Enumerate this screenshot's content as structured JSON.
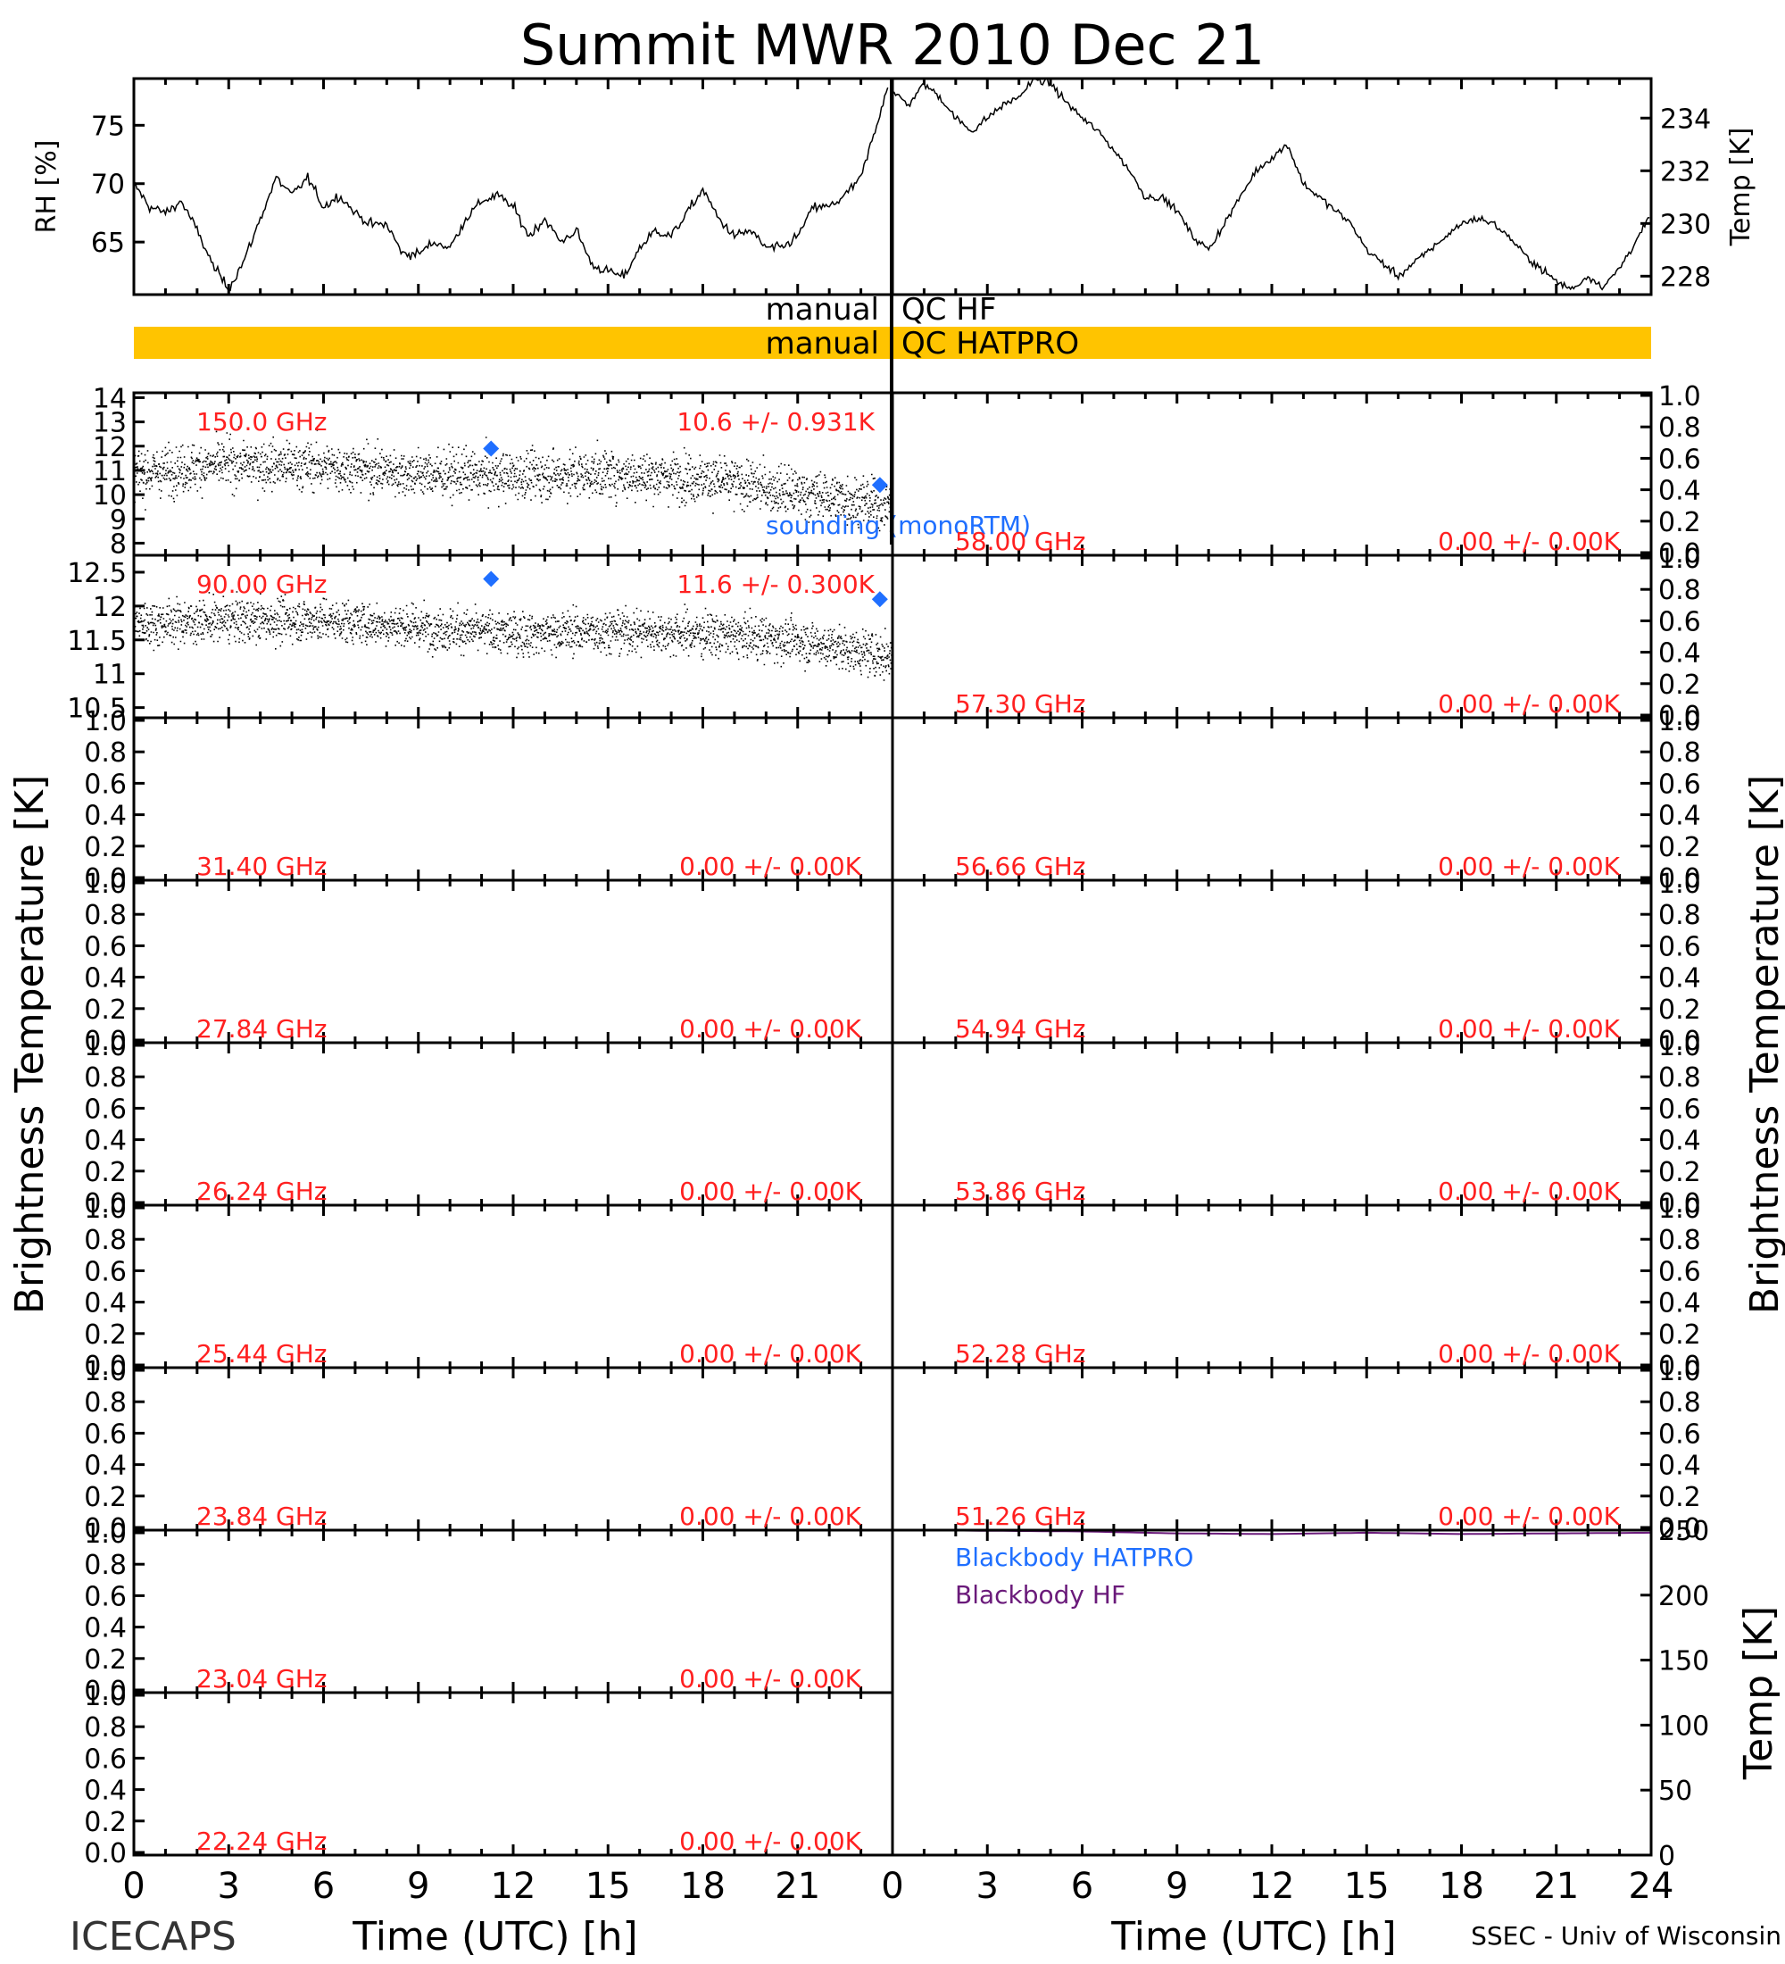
{
  "figure": {
    "title": "Summit MWR 2010 Dec 21",
    "footer_left": "ICECAPS",
    "footer_right": "SSEC - Univ of Wisconsin",
    "bt_ylabel": "Brightness Temperature [K]"
  },
  "colors": {
    "accent_red": "#ff2020",
    "sounding_blue": "#1f6fff",
    "qc_bar": "#ffc400",
    "blackbody_hf": "#6a1a7a"
  },
  "chart_data": [
    {
      "id": "rh",
      "type": "line",
      "ylabel": "RH [%]",
      "xlim": [
        0,
        24
      ],
      "ylim": [
        60.5,
        79
      ],
      "yticks": [
        65,
        70,
        75
      ],
      "series": [
        {
          "x": [
            0,
            0.5,
            1,
            1.5,
            2,
            2.5,
            3,
            3.5,
            4,
            4.5,
            5,
            5.5,
            6,
            6.5,
            7,
            7.5,
            8,
            8.5,
            9,
            9.5,
            10,
            10.5,
            11,
            11.5,
            12,
            12.5,
            13,
            13.5,
            14,
            14.5,
            15,
            15.5,
            16,
            16.5,
            17,
            17.5,
            18,
            18.5,
            19,
            19.5,
            20,
            20.5,
            21,
            21.5,
            22,
            22.5,
            23,
            23.5,
            23.9
          ],
          "y": [
            70,
            68,
            67.5,
            68.5,
            66,
            63,
            61,
            63.5,
            67,
            70.5,
            69,
            70.5,
            68,
            69,
            67.5,
            66.5,
            66.5,
            64,
            64,
            65,
            64.5,
            67,
            68.5,
            69,
            68,
            65.5,
            67,
            65,
            66,
            63,
            62.5,
            62,
            64.5,
            66,
            65.5,
            67.5,
            69.5,
            67,
            65.5,
            66,
            64.5,
            64.5,
            65.5,
            68,
            68,
            69,
            70.5,
            75,
            79
          ]
        }
      ]
    },
    {
      "id": "temp",
      "type": "line",
      "ylabel": "Temp [K]",
      "xlim": [
        0,
        24
      ],
      "ylim": [
        227.3,
        235.5
      ],
      "yticks": [
        228,
        230,
        232,
        234
      ],
      "series": [
        {
          "x": [
            0,
            0.5,
            1,
            1.5,
            2,
            2.5,
            3,
            3.5,
            4,
            4.5,
            5,
            5.5,
            6,
            6.5,
            7,
            7.5,
            8,
            8.5,
            9,
            9.5,
            10,
            10.5,
            11,
            11.5,
            12,
            12.5,
            13,
            13.5,
            14,
            14.5,
            15,
            15.5,
            16,
            16.5,
            17,
            17.5,
            18,
            18.5,
            19,
            19.5,
            20,
            20.5,
            21,
            21.5,
            22,
            22.5,
            23,
            23.5,
            24
          ],
          "y": [
            235,
            234.5,
            235.3,
            234.8,
            234,
            233.5,
            234,
            234.5,
            234.8,
            235.5,
            235.3,
            234.6,
            234,
            233.5,
            232.8,
            232,
            231,
            231,
            230.5,
            229.5,
            229,
            230,
            231,
            232,
            232.5,
            233,
            231.5,
            231,
            230.5,
            230,
            229,
            228.5,
            228,
            228.5,
            229,
            229.5,
            230,
            230.2,
            230,
            229.5,
            228.8,
            228.3,
            227.8,
            227.5,
            228,
            227.6,
            228.3,
            229.3,
            230.3
          ]
        }
      ]
    },
    {
      "id": "ch_150",
      "type": "scatter",
      "freq_label": "150.0 GHz",
      "stats_label": "10.6 +/- 0.931K",
      "xlim": [
        0,
        24
      ],
      "ylim": [
        7.5,
        14.2
      ],
      "yticks": [
        8,
        9,
        10,
        11,
        12,
        13,
        14
      ],
      "noise_sd": 0.93,
      "trend": {
        "x": [
          0,
          3,
          6,
          9,
          12,
          15,
          18,
          21,
          24
        ],
        "y": [
          10.9,
          11.3,
          11.2,
          10.9,
          10.8,
          10.9,
          10.7,
          10.1,
          9.6
        ]
      },
      "sounding": {
        "x": [
          11.3,
          23.6
        ],
        "y": [
          11.9,
          10.4
        ]
      },
      "sounding_label": "sounding (monoRTM)"
    },
    {
      "id": "ch_90",
      "type": "scatter",
      "freq_label": "90.00 GHz",
      "stats_label": "11.6 +/- 0.300K",
      "xlim": [
        0,
        24
      ],
      "ylim": [
        10.35,
        12.75
      ],
      "yticks": [
        10.5,
        11.0,
        11.5,
        12.0,
        12.5
      ],
      "noise_sd": 0.3,
      "trend": {
        "x": [
          0,
          3,
          6,
          9,
          12,
          15,
          18,
          21,
          24
        ],
        "y": [
          11.75,
          11.8,
          11.8,
          11.7,
          11.6,
          11.65,
          11.6,
          11.5,
          11.25
        ]
      },
      "sounding": {
        "x": [
          11.3,
          23.6
        ],
        "y": [
          12.4,
          12.1
        ]
      }
    },
    {
      "id": "blackbody",
      "type": "line",
      "ylabel": "Temp [K]",
      "xlim": [
        0,
        24
      ],
      "ylim": [
        0,
        250
      ],
      "yticks": [
        0,
        50,
        100,
        150,
        200,
        250
      ],
      "series": [
        {
          "name": "Blackbody HATPRO",
          "x": [
            0,
            24
          ],
          "y": [
            0,
            0
          ]
        },
        {
          "name": "Blackbody HF",
          "x": [
            0,
            3,
            6,
            9,
            12,
            15,
            18,
            21,
            24
          ],
          "y": [
            250,
            249.5,
            249,
            247.5,
            247,
            248,
            247,
            247.5,
            248
          ]
        }
      ]
    }
  ],
  "qc": {
    "hf": {
      "left": "manual",
      "right": "QC HF"
    },
    "hatpro": {
      "left": "manual",
      "right": "QC HATPRO"
    }
  },
  "panels_left": [
    {
      "freq": "31.40 GHz",
      "stats": "0.00 +/- 0.00K"
    },
    {
      "freq": "27.84 GHz",
      "stats": "0.00 +/- 0.00K"
    },
    {
      "freq": "26.24 GHz",
      "stats": "0.00 +/- 0.00K"
    },
    {
      "freq": "25.44 GHz",
      "stats": "0.00 +/- 0.00K"
    },
    {
      "freq": "23.84 GHz",
      "stats": "0.00 +/- 0.00K"
    },
    {
      "freq": "23.04 GHz",
      "stats": "0.00 +/- 0.00K"
    },
    {
      "freq": "22.24 GHz",
      "stats": "0.00 +/- 0.00K"
    }
  ],
  "panels_right": [
    {
      "freq": "58.00 GHz",
      "stats": "0.00 +/- 0.00K"
    },
    {
      "freq": "57.30 GHz",
      "stats": "0.00 +/- 0.00K"
    },
    {
      "freq": "56.66 GHz",
      "stats": "0.00 +/- 0.00K"
    },
    {
      "freq": "54.94 GHz",
      "stats": "0.00 +/- 0.00K"
    },
    {
      "freq": "53.86 GHz",
      "stats": "0.00 +/- 0.00K"
    },
    {
      "freq": "52.28 GHz",
      "stats": "0.00 +/- 0.00K"
    },
    {
      "freq": "51.26 GHz",
      "stats": "0.00 +/- 0.00K"
    }
  ],
  "empty_yticks": [
    "0.0",
    "0.2",
    "0.4",
    "0.6",
    "0.8",
    "1.0"
  ],
  "x_axis": {
    "ticks": [
      "0",
      "3",
      "6",
      "9",
      "12",
      "15",
      "18",
      "21",
      "24"
    ],
    "label": "Time (UTC) [h]"
  }
}
